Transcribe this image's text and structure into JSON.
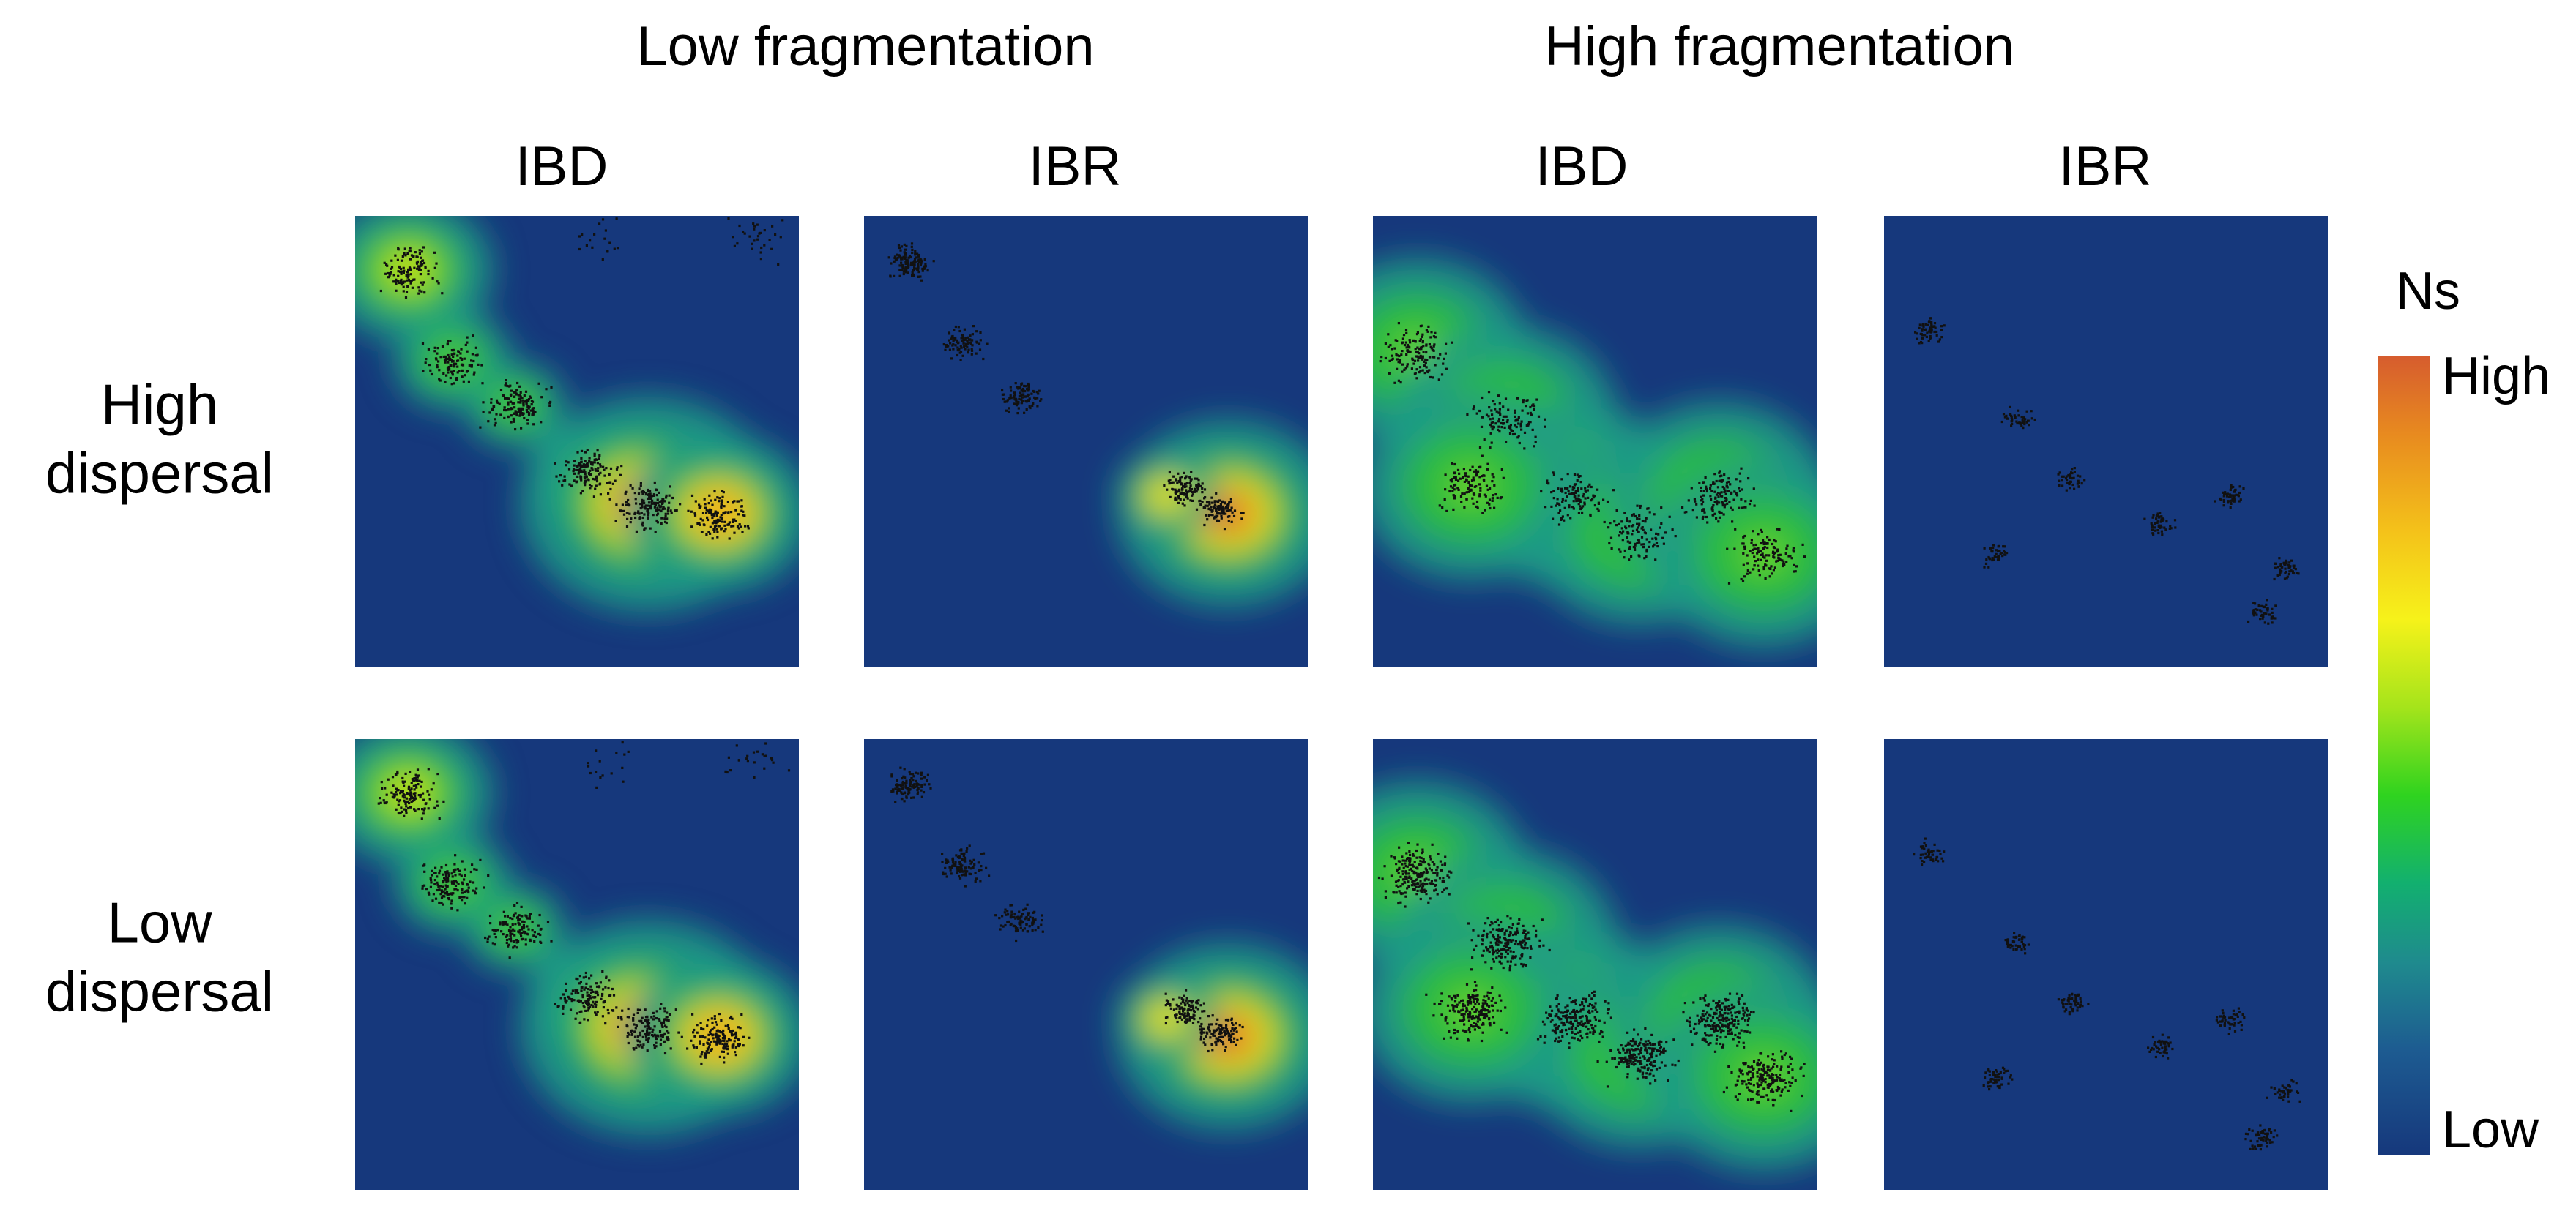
{
  "header": {
    "groups": [
      {
        "label": "Low fragmentation"
      },
      {
        "label": "High fragmentation"
      }
    ],
    "columns": [
      {
        "label": "IBD"
      },
      {
        "label": "IBR"
      },
      {
        "label": "IBD"
      },
      {
        "label": "IBR"
      }
    ]
  },
  "rows": [
    {
      "line1": "High",
      "line2": "dispersal"
    },
    {
      "line1": "Low",
      "line2": "dispersal"
    }
  ],
  "colorbar": {
    "title": "Ns",
    "high_label": "High",
    "low_label": "Low",
    "colors": [
      "#d65c2e",
      "#e88b1f",
      "#f6f21a",
      "#2fd31f",
      "#1f8a8e",
      "#16387c"
    ]
  },
  "panel_background": "#16387c",
  "panels": [
    {
      "row": "High dispersal",
      "column": "IBD",
      "fragmentation": "Low fragmentation"
    },
    {
      "row": "High dispersal",
      "column": "IBR",
      "fragmentation": "Low fragmentation"
    },
    {
      "row": "High dispersal",
      "column": "IBD",
      "fragmentation": "High fragmentation"
    },
    {
      "row": "High dispersal",
      "column": "IBR",
      "fragmentation": "High fragmentation"
    },
    {
      "row": "Low dispersal",
      "column": "IBD",
      "fragmentation": "Low fragmentation"
    },
    {
      "row": "Low dispersal",
      "column": "IBR",
      "fragmentation": "Low fragmentation"
    },
    {
      "row": "Low dispersal",
      "column": "IBD",
      "fragmentation": "High fragmentation"
    },
    {
      "row": "Low dispersal",
      "column": "IBR",
      "fragmentation": "High fragmentation"
    }
  ]
}
